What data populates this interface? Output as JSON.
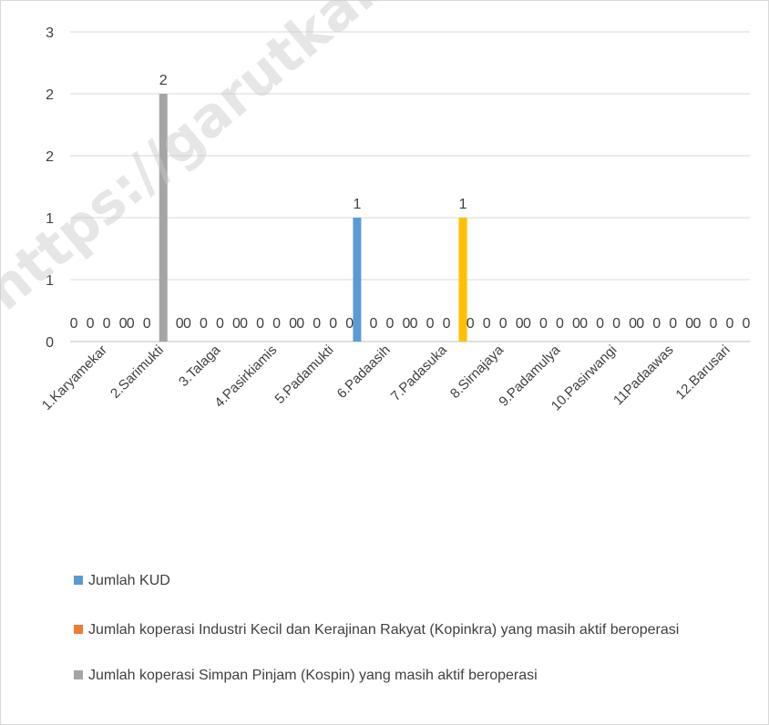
{
  "chart_data": {
    "type": "bar",
    "categories": [
      "1.Karyamekar",
      "2.Sarimukti",
      "3.Talaga",
      "4.Pasirkiamis",
      "5.Padamukti",
      "6.Padaasih",
      "7.Padasuka",
      "8.Sirnajaya",
      "9.Padamulya",
      "10.Pasirwangi",
      "11Padaawas",
      "12.Barusari"
    ],
    "series": [
      {
        "name": "Jumlah KUD",
        "color": "#5b9bd5",
        "values": [
          0,
          0,
          0,
          0,
          0,
          1,
          0,
          0,
          0,
          0,
          0,
          0
        ],
        "labels": [
          "0",
          "0",
          "0",
          "0",
          "0",
          "1",
          "0",
          "0",
          "0",
          "0",
          "0",
          "0"
        ]
      },
      {
        "name": "Jumlah koperasi Industri Kecil dan Kerajinan Rakyat (Kopinkra) yang masih aktif beroperasi",
        "color": "#ed7d31",
        "values": [
          0,
          0,
          0,
          0,
          0,
          0,
          0,
          0,
          0,
          0,
          0,
          0
        ],
        "labels": [
          "0",
          "0",
          "0",
          "0",
          "0",
          "0",
          "0",
          "0",
          "0",
          "0",
          "0",
          "0"
        ]
      },
      {
        "name": "Jumlah koperasi Simpan Pinjam (Kospin) yang masih aktif  beroperasi",
        "color": "#a5a5a5",
        "values": [
          0,
          2,
          0,
          0,
          0,
          0,
          0,
          0,
          0,
          0,
          0,
          0
        ],
        "labels": [
          "0",
          "2",
          "0",
          "0",
          "0",
          "0",
          "0",
          "0",
          "0",
          "0",
          "0",
          "0"
        ]
      },
      {
        "name": "",
        "color": "#ffc000",
        "values": [
          0,
          0,
          0,
          0,
          0,
          0,
          1,
          0,
          0,
          0,
          0,
          0
        ],
        "labels": [
          "0",
          "0",
          "0",
          "0",
          "0",
          "0",
          "1",
          "0",
          "0",
          "0",
          "0",
          "0"
        ]
      }
    ],
    "yticks": [
      "0",
      "1",
      "1",
      "2",
      "2",
      "3"
    ],
    "ylim": [
      0,
      2.5
    ],
    "grid": true,
    "legend": "bottom",
    "title": "",
    "xlabel": "",
    "ylabel": ""
  },
  "watermark": "https://garutkab.bps.go.id"
}
